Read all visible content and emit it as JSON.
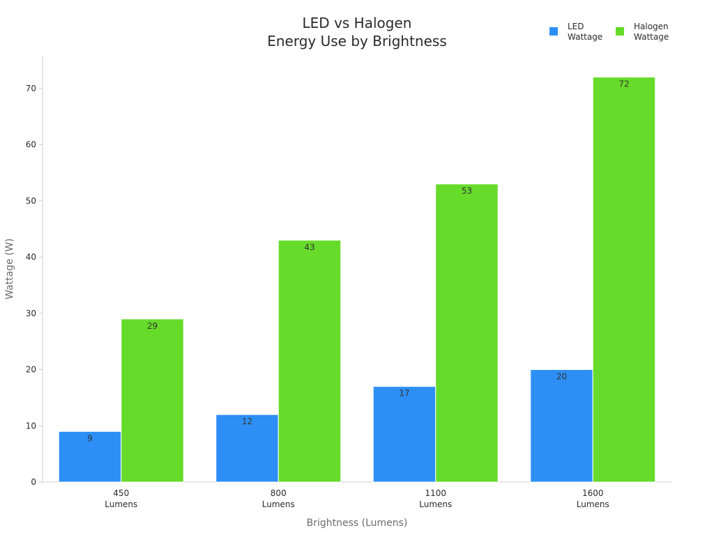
{
  "chart_data": {
    "type": "bar",
    "title": [
      "LED vs Halogen",
      "Energy Use by Brightness"
    ],
    "xlabel": "Brightness (Lumens)",
    "ylabel": "Wattage (W)",
    "categories": [
      [
        "450",
        "Lumens"
      ],
      [
        "800",
        "Lumens"
      ],
      [
        "1100",
        "Lumens"
      ],
      [
        "1600",
        "Lumens"
      ]
    ],
    "series": [
      {
        "name": [
          "LED",
          "Wattage"
        ],
        "color": "#2d8ff5",
        "values": [
          9,
          12,
          17,
          20
        ]
      },
      {
        "name": [
          "Halogen",
          "Wattage"
        ],
        "color": "#66db2a",
        "values": [
          29,
          43,
          53,
          72
        ]
      }
    ],
    "ylim": [
      0,
      75.8
    ],
    "yticks": [
      0,
      10,
      20,
      30,
      40,
      50,
      60,
      70
    ],
    "grid": false,
    "legend_position": "top-right"
  }
}
